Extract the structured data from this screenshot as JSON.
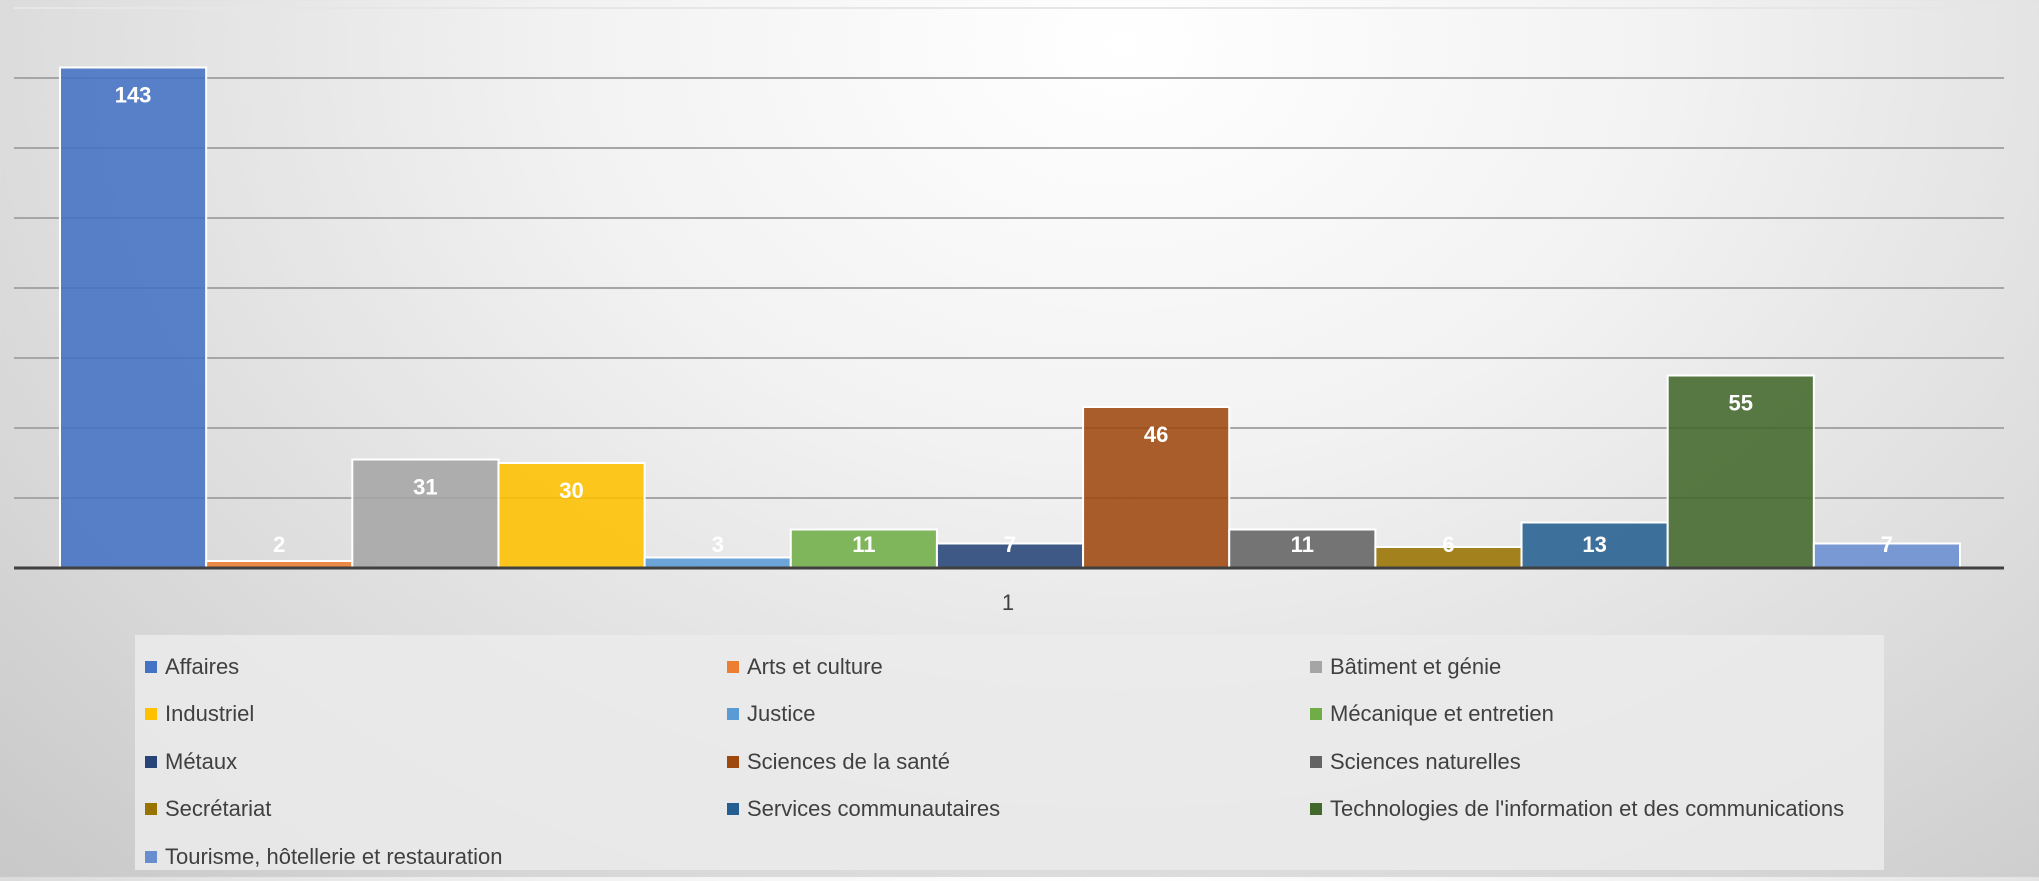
{
  "chart_data": {
    "type": "bar",
    "categories": [
      "1"
    ],
    "ylim": [
      0,
      160
    ],
    "grid": true,
    "legend_position": "bottom",
    "series": [
      {
        "name": "Affaires",
        "values": [
          143
        ],
        "color": "#4472C4"
      },
      {
        "name": "Arts et culture",
        "values": [
          2
        ],
        "color": "#ED7D31"
      },
      {
        "name": "Bâtiment et génie",
        "values": [
          31
        ],
        "color": "#A5A5A5"
      },
      {
        "name": "Industriel",
        "values": [
          30
        ],
        "color": "#FFC000"
      },
      {
        "name": "Justice",
        "values": [
          3
        ],
        "color": "#5B9BD5"
      },
      {
        "name": "Mécanique et entretien",
        "values": [
          11
        ],
        "color": "#70AD47"
      },
      {
        "name": "Métaux",
        "values": [
          7
        ],
        "color": "#264478"
      },
      {
        "name": "Sciences de la santé",
        "values": [
          46
        ],
        "color": "#9E480E"
      },
      {
        "name": "Sciences naturelles",
        "values": [
          11
        ],
        "color": "#636363"
      },
      {
        "name": "Secrétariat",
        "values": [
          6
        ],
        "color": "#997300"
      },
      {
        "name": "Services communautaires",
        "values": [
          13
        ],
        "color": "#255E91"
      },
      {
        "name": "Technologies de l'information et des communications",
        "values": [
          55
        ],
        "color": "#43682B"
      },
      {
        "name": "Tourisme, hôtellerie et restauration",
        "values": [
          7
        ],
        "color": "#698ED0"
      }
    ]
  }
}
